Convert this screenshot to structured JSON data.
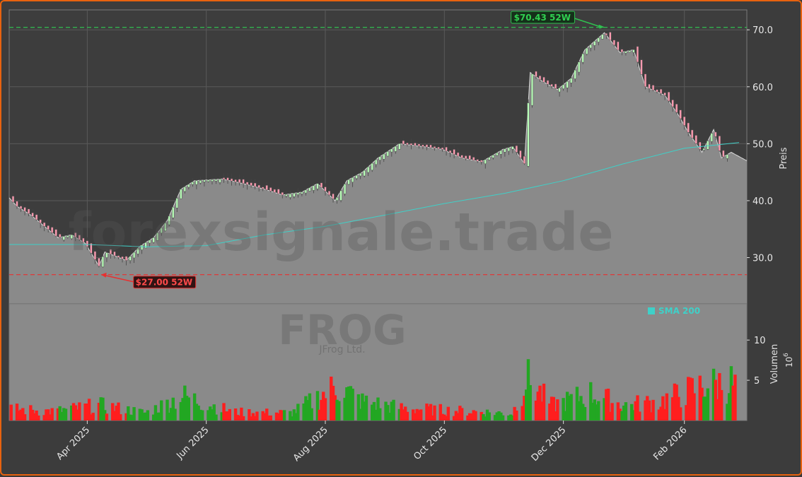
{
  "chart_data": {
    "type": "candlestick",
    "watermark": {
      "site": "forexsignale.trade",
      "ticker": "FROG",
      "company": "JFrog Ltd."
    },
    "price_axis": {
      "label": "Preis",
      "ticks": [
        "30.0",
        "40.0",
        "50.0",
        "60.0",
        "70.0"
      ],
      "range": [
        22,
        73.5
      ]
    },
    "volume_axis": {
      "label": "Volumen",
      "exponent": "10",
      "exponent_power": "6",
      "ticks": [
        "5",
        "10"
      ],
      "range": [
        0,
        14.5
      ]
    },
    "x_ticks": [
      "Apr 2025",
      "Jun 2025",
      "Aug 2025",
      "Oct 2025",
      "Dec 2025",
      "Feb 2026"
    ],
    "x_tick_dates": [
      "2025-04-01",
      "2025-06-01",
      "2025-08-01",
      "2025-10-01",
      "2025-12-01",
      "2026-02-01"
    ],
    "date_range": [
      "2025-02-20",
      "2026-03-05"
    ],
    "last_close": 47.0,
    "high_52w": {
      "label": "$70.43 52W",
      "value": 70.43,
      "date": "2025-12-22"
    },
    "low_52w": {
      "label": "$27.00 52W",
      "value": 27.0,
      "date": "2025-04-08"
    },
    "sma": {
      "name": "SMA 200",
      "points": [
        [
          "2025-02-20",
          32.3
        ],
        [
          "2025-04-01",
          32.3
        ],
        [
          "2025-05-01",
          31.9
        ],
        [
          "2025-06-01",
          32.1
        ],
        [
          "2025-07-01",
          34.0
        ],
        [
          "2025-08-01",
          35.5
        ],
        [
          "2025-09-01",
          37.5
        ],
        [
          "2025-10-01",
          39.5
        ],
        [
          "2025-11-01",
          41.3
        ],
        [
          "2025-12-01",
          43.5
        ],
        [
          "2026-01-01",
          46.5
        ],
        [
          "2026-02-01",
          49.2
        ],
        [
          "2026-03-01",
          50.2
        ]
      ]
    },
    "price_path": [
      [
        "2025-02-20",
        40.5
      ],
      [
        "2025-02-24",
        39.0
      ],
      [
        "2025-03-03",
        37.5
      ],
      [
        "2025-03-10",
        35.5
      ],
      [
        "2025-03-17",
        33.5
      ],
      [
        "2025-03-24",
        34.0
      ],
      [
        "2025-03-31",
        32.5
      ],
      [
        "2025-04-07",
        28.5
      ],
      [
        "2025-04-10",
        31.0
      ],
      [
        "2025-04-21",
        29.5
      ],
      [
        "2025-04-28",
        32.0
      ],
      [
        "2025-05-05",
        33.5
      ],
      [
        "2025-05-12",
        36.5
      ],
      [
        "2025-05-19",
        42.0
      ],
      [
        "2025-05-26",
        43.5
      ],
      [
        "2025-06-09",
        43.8
      ],
      [
        "2025-06-20",
        43.0
      ],
      [
        "2025-07-01",
        42.0
      ],
      [
        "2025-07-10",
        41.0
      ],
      [
        "2025-07-20",
        41.5
      ],
      [
        "2025-07-28",
        43.0
      ],
      [
        "2025-08-06",
        40.0
      ],
      [
        "2025-08-12",
        43.5
      ],
      [
        "2025-08-20",
        45.0
      ],
      [
        "2025-08-28",
        47.5
      ],
      [
        "2025-09-08",
        50.0
      ],
      [
        "2025-09-20",
        49.5
      ],
      [
        "2025-09-30",
        49.0
      ],
      [
        "2025-10-10",
        47.5
      ],
      [
        "2025-10-20",
        46.8
      ],
      [
        "2025-10-31",
        49.0
      ],
      [
        "2025-11-05",
        49.5
      ],
      [
        "2025-11-11",
        46.5
      ],
      [
        "2025-11-14",
        62.5
      ],
      [
        "2025-11-20",
        61.0
      ],
      [
        "2025-11-28",
        59.5
      ],
      [
        "2025-12-05",
        61.5
      ],
      [
        "2025-12-12",
        66.5
      ],
      [
        "2025-12-22",
        69.5
      ],
      [
        "2025-12-30",
        66.0
      ],
      [
        "2026-01-06",
        66.5
      ],
      [
        "2026-01-12",
        60.0
      ],
      [
        "2026-01-22",
        58.5
      ],
      [
        "2026-01-29",
        55.0
      ],
      [
        "2026-02-03",
        52.0
      ],
      [
        "2026-02-10",
        48.5
      ],
      [
        "2026-02-16",
        52.5
      ],
      [
        "2026-02-20",
        47.5
      ],
      [
        "2026-02-25",
        48.5
      ],
      [
        "2026-03-05",
        47.0
      ]
    ],
    "volume_path": [
      [
        "2025-02-20",
        1.5
      ],
      [
        "2025-03-15",
        1.2
      ],
      [
        "2025-04-07",
        2.0
      ],
      [
        "2025-05-01",
        1.0
      ],
      [
        "2025-05-20",
        3.2
      ],
      [
        "2025-06-15",
        1.1
      ],
      [
        "2025-07-15",
        1.0
      ],
      [
        "2025-08-07",
        4.5
      ],
      [
        "2025-08-20",
        2.5
      ],
      [
        "2025-09-10",
        1.6
      ],
      [
        "2025-10-15",
        1.2
      ],
      [
        "2025-11-05",
        0.9
      ],
      [
        "2025-11-12",
        5.5
      ],
      [
        "2025-11-25",
        2.0
      ],
      [
        "2025-12-15",
        3.5
      ],
      [
        "2026-01-01",
        2.0
      ],
      [
        "2026-01-20",
        2.5
      ],
      [
        "2026-02-10",
        4.5
      ],
      [
        "2026-02-25",
        5.0
      ],
      [
        "2026-03-05",
        2.5
      ]
    ],
    "colors": {
      "up": "#22a722",
      "down": "#ff1e1e",
      "sma": "#3fd0c8",
      "high": "#30c050",
      "low": "#e83030",
      "area": "#8a8a8a"
    }
  }
}
